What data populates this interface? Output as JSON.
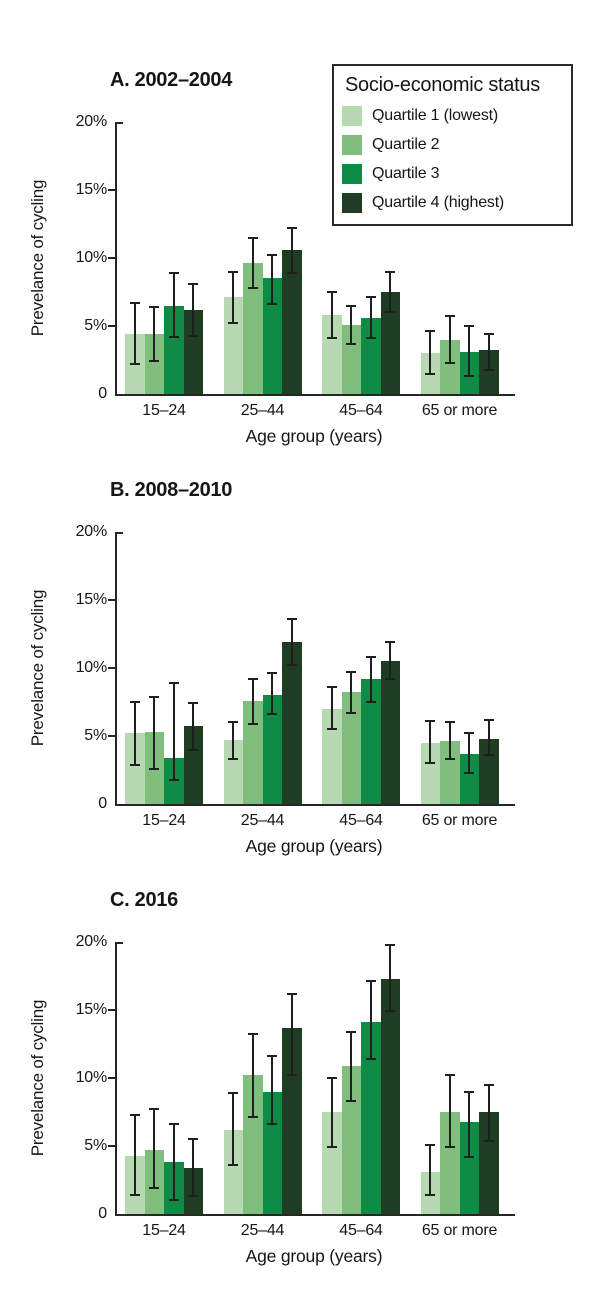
{
  "legend": {
    "title": "Socio-economic status",
    "items": [
      {
        "label": "Quartile 1 (lowest)",
        "color": "#b6d9b1"
      },
      {
        "label": "Quartile 2",
        "color": "#7fbe7c"
      },
      {
        "label": "Quartile 3",
        "color": "#0e8b45"
      },
      {
        "label": "Quartile 4 (highest)",
        "color": "#1f3d22"
      }
    ]
  },
  "styles": {
    "axis_color": "#262626",
    "error_bar_color": "#1f1f1f",
    "text_color": "#161616",
    "background": "#ffffff"
  },
  "chart_data": [
    {
      "type": "bar",
      "title": "A. 2002–2004",
      "xlabel": "Age group (years)",
      "ylabel": "Prevelance of cycling",
      "categories": [
        "15–24",
        "25–44",
        "45–64",
        "65 or more"
      ],
      "ylim": [
        0,
        20
      ],
      "ytick_labels": [
        "20%",
        "15%",
        "10%",
        "5%",
        "0"
      ],
      "ytick_values": [
        20,
        15,
        10,
        5,
        0
      ],
      "grid": false,
      "error_bars": true,
      "series": [
        {
          "name": "Quartile 1 (lowest)",
          "values": [
            4.4,
            7.1,
            5.8,
            3.0
          ],
          "ci_low": [
            2.2,
            5.2,
            4.1,
            1.5
          ],
          "ci_high": [
            6.7,
            9.0,
            7.5,
            4.6
          ]
        },
        {
          "name": "Quartile 2",
          "values": [
            4.4,
            9.6,
            5.1,
            4.0
          ],
          "ci_low": [
            2.4,
            7.8,
            3.7,
            2.3
          ],
          "ci_high": [
            6.4,
            11.5,
            6.5,
            5.7
          ]
        },
        {
          "name": "Quartile 3",
          "values": [
            6.5,
            8.5,
            5.6,
            3.1
          ],
          "ci_low": [
            4.2,
            6.6,
            4.1,
            1.3
          ],
          "ci_high": [
            8.9,
            10.2,
            7.1,
            5.0
          ]
        },
        {
          "name": "Quartile 4 (highest)",
          "values": [
            6.2,
            10.6,
            7.5,
            3.2
          ],
          "ci_low": [
            4.3,
            8.9,
            6.0,
            1.8
          ],
          "ci_high": [
            8.1,
            12.2,
            9.0,
            4.4
          ]
        }
      ]
    },
    {
      "type": "bar",
      "title": "B. 2008–2010",
      "xlabel": "Age group (years)",
      "ylabel": "Prevelance of cycling",
      "categories": [
        "15–24",
        "25–44",
        "45–64",
        "65 or more"
      ],
      "ylim": [
        0,
        20
      ],
      "ytick_labels": [
        "20%",
        "15%",
        "10%",
        "5%",
        "0"
      ],
      "ytick_values": [
        20,
        15,
        10,
        5,
        0
      ],
      "grid": false,
      "error_bars": true,
      "series": [
        {
          "name": "Quartile 1 (lowest)",
          "values": [
            5.2,
            4.7,
            7.0,
            4.5
          ],
          "ci_low": [
            2.9,
            3.3,
            5.5,
            3.0
          ],
          "ci_high": [
            7.5,
            6.0,
            8.6,
            6.1
          ]
        },
        {
          "name": "Quartile 2",
          "values": [
            5.3,
            7.6,
            8.2,
            4.6
          ],
          "ci_low": [
            2.6,
            5.9,
            6.7,
            3.3
          ],
          "ci_high": [
            7.9,
            9.2,
            9.7,
            6.0
          ]
        },
        {
          "name": "Quartile 3",
          "values": [
            3.4,
            8.0,
            9.2,
            3.7
          ],
          "ci_low": [
            1.8,
            6.6,
            7.5,
            2.3
          ],
          "ci_high": [
            8.9,
            9.6,
            10.8,
            5.2
          ]
        },
        {
          "name": "Quartile 4 (highest)",
          "values": [
            5.7,
            11.9,
            10.5,
            4.8
          ],
          "ci_low": [
            4.0,
            10.2,
            9.2,
            3.6
          ],
          "ci_high": [
            7.4,
            13.6,
            11.9,
            6.2
          ]
        }
      ]
    },
    {
      "type": "bar",
      "title": "C. 2016",
      "xlabel": "Age group (years)",
      "ylabel": "Prevelance of cycling",
      "categories": [
        "15–24",
        "25–44",
        "45–64",
        "65 or more"
      ],
      "ylim": [
        0,
        20
      ],
      "ytick_labels": [
        "20%",
        "15%",
        "10%",
        "5%",
        "0"
      ],
      "ytick_values": [
        20,
        15,
        10,
        5,
        0
      ],
      "grid": false,
      "error_bars": true,
      "series": [
        {
          "name": "Quartile 1 (lowest)",
          "values": [
            4.3,
            6.2,
            7.5,
            3.1
          ],
          "ci_low": [
            1.4,
            3.6,
            4.9,
            1.4
          ],
          "ci_high": [
            7.3,
            8.9,
            10.0,
            5.1
          ]
        },
        {
          "name": "Quartile 2",
          "values": [
            4.7,
            10.2,
            10.9,
            7.5
          ],
          "ci_low": [
            1.9,
            7.1,
            8.3,
            4.9
          ],
          "ci_high": [
            7.7,
            13.2,
            13.4,
            10.2
          ]
        },
        {
          "name": "Quartile 3",
          "values": [
            3.8,
            9.0,
            14.1,
            6.8
          ],
          "ci_low": [
            1.0,
            6.6,
            11.4,
            4.2
          ],
          "ci_high": [
            6.6,
            11.6,
            17.1,
            9.0
          ]
        },
        {
          "name": "Quartile 4 (highest)",
          "values": [
            3.4,
            13.7,
            17.3,
            7.5
          ],
          "ci_low": [
            1.3,
            10.2,
            14.9,
            5.4
          ],
          "ci_high": [
            5.5,
            16.2,
            19.8,
            9.5
          ]
        }
      ]
    }
  ]
}
